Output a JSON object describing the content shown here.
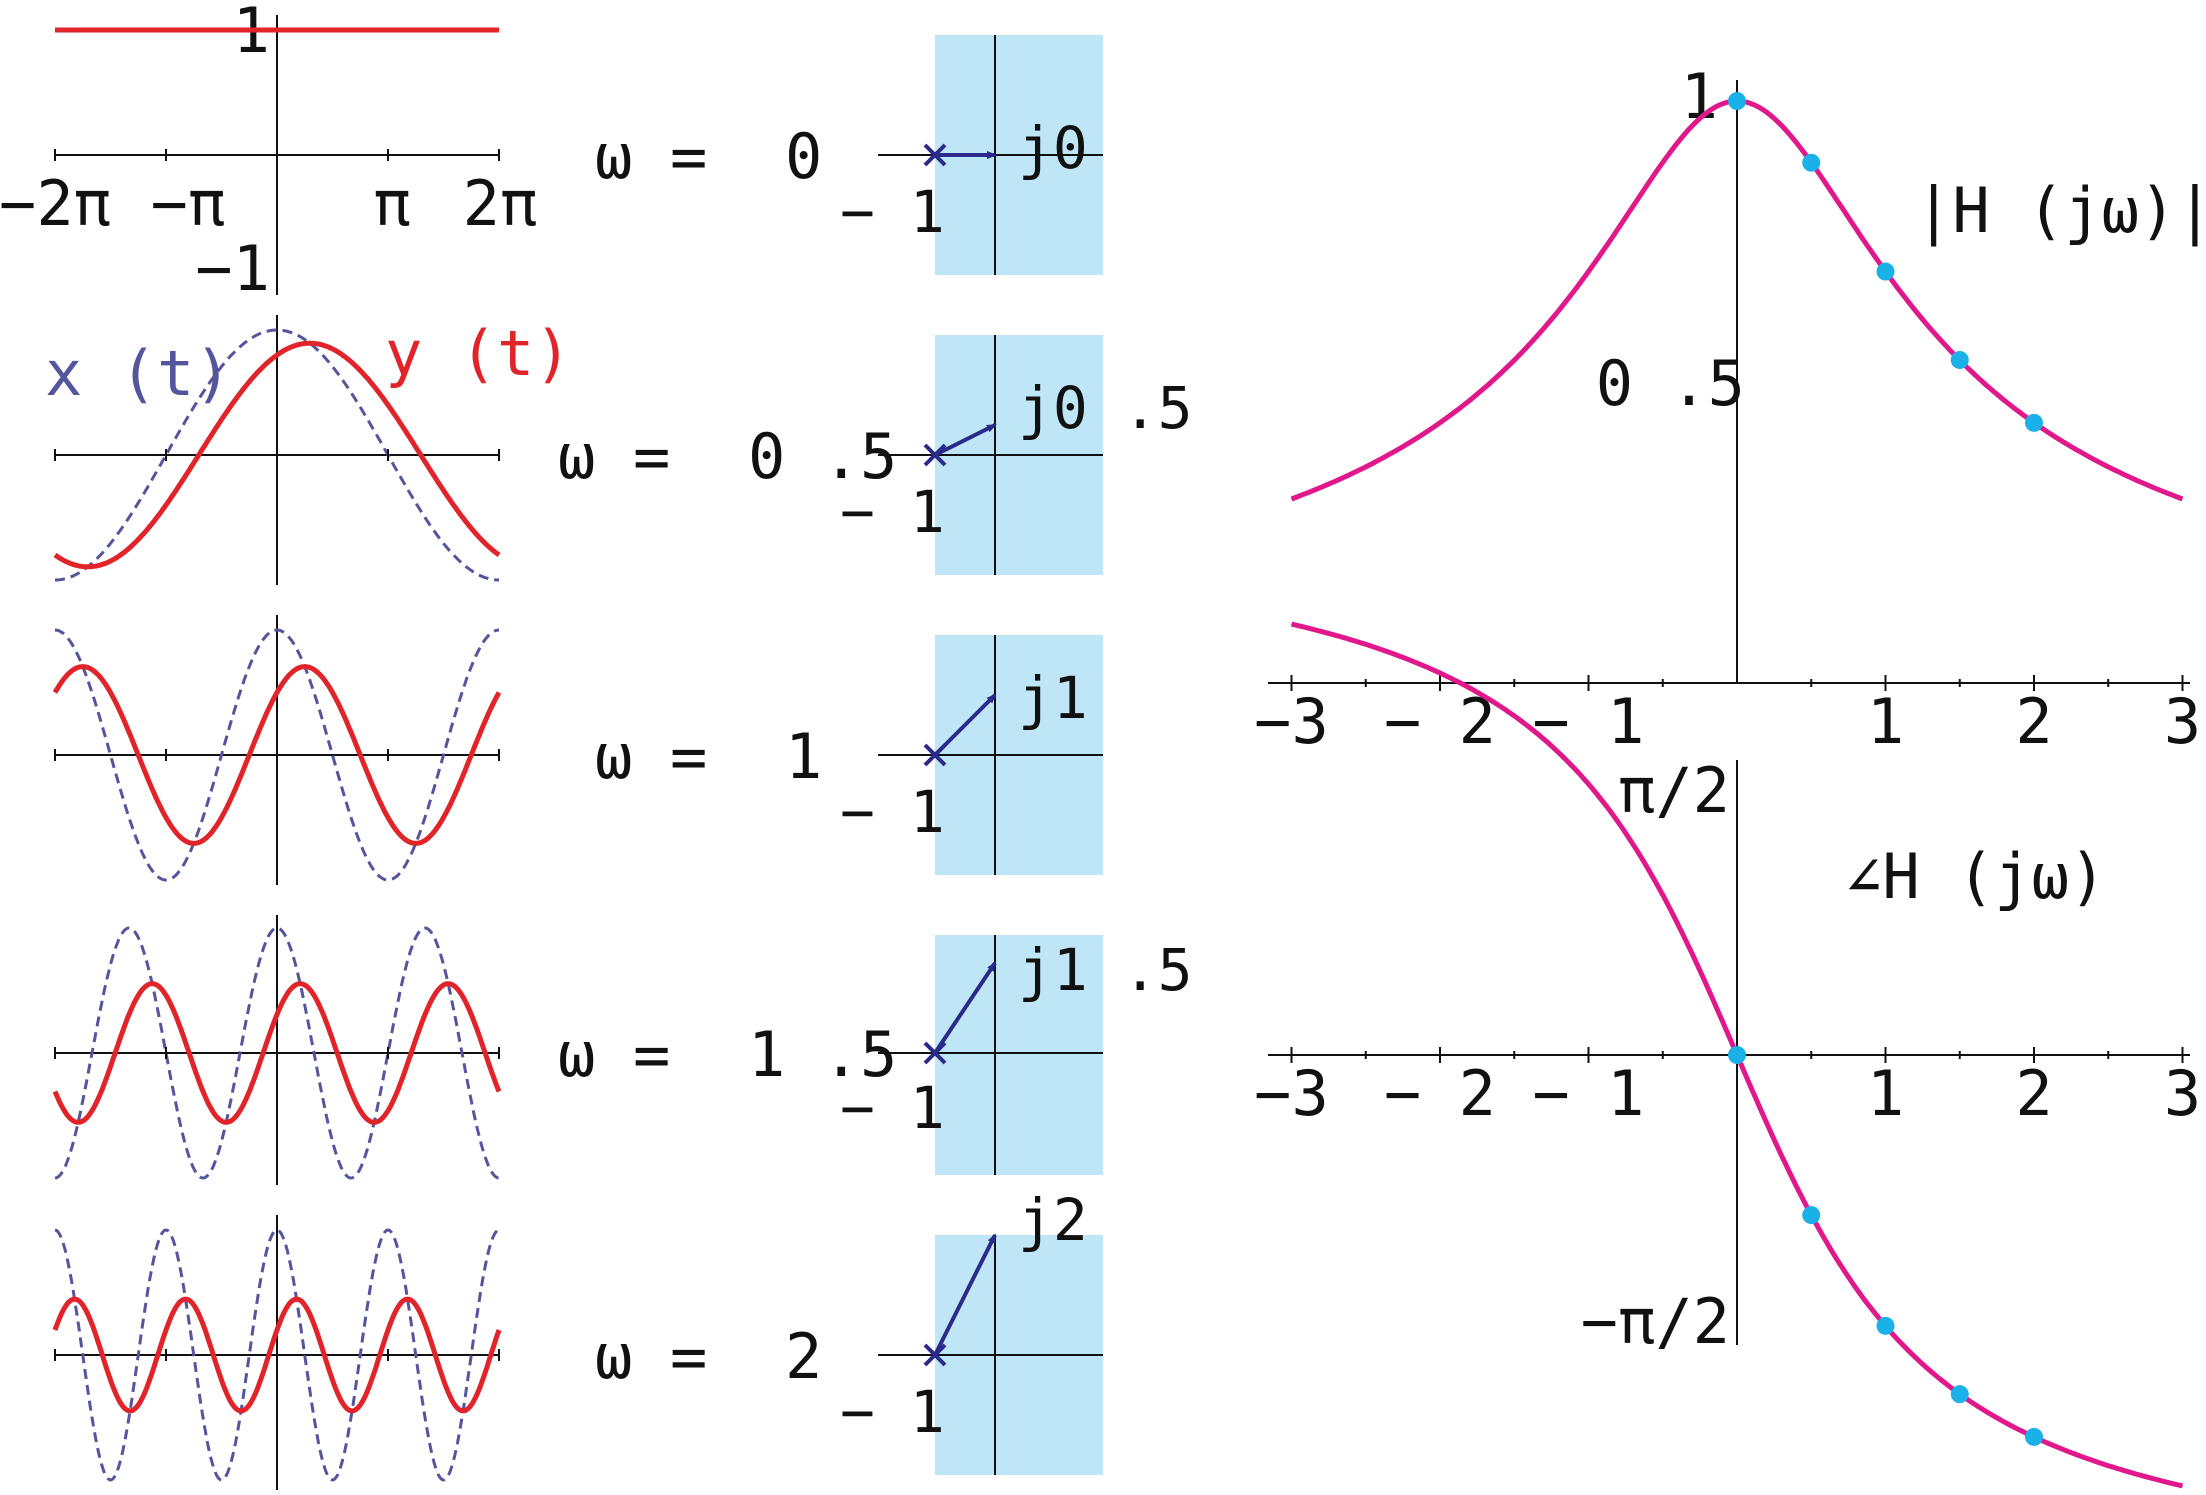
{
  "time_panels": {
    "x_ticks": [
      "−2π",
      "−π",
      "π",
      "2π"
    ],
    "y_ticks": [
      "1",
      "−1"
    ],
    "legend": {
      "x": "x (t)",
      "y": "y (t)"
    },
    "colors": {
      "x": "#55559e",
      "y": "#e0242a",
      "axis": "#111111"
    }
  },
  "phasor_panels": {
    "omega_symbol": "ω",
    "equals": "=",
    "minus_one_label": "− 1",
    "background_color": "#bfe6f7",
    "arrow_color": "#2a2a8c",
    "rows": [
      {
        "omega": "0",
        "tip": "j0"
      },
      {
        "omega": "0 .5",
        "tip": "j0 .5"
      },
      {
        "omega": "1",
        "tip": "j1"
      },
      {
        "omega": "1 .5",
        "tip": "j1 .5"
      },
      {
        "omega": "2",
        "tip": "j2"
      }
    ]
  },
  "chart_data": [
    {
      "type": "line",
      "title": "",
      "panel": "magnitude",
      "curve_label": "|H (jω)|",
      "xlabel": "",
      "ylabel": "",
      "xlim": [
        -3,
        3
      ],
      "ylim": [
        0,
        1.05
      ],
      "x_tick_labels": [
        "−3",
        "− 2",
        "− 1",
        "1",
        "2",
        "3"
      ],
      "y_tick_labels": [
        "0 .5",
        "1"
      ],
      "series": [
        {
          "function": "1/sqrt(1+w^2)",
          "x": [
            -3,
            -2,
            -1,
            0,
            0.5,
            1,
            1.5,
            2,
            3
          ],
          "values": [
            0.316,
            0.447,
            0.707,
            1,
            0.894,
            0.707,
            0.555,
            0.447,
            0.316
          ]
        }
      ],
      "highlighted_points": [
        {
          "x": 0,
          "y": 1
        },
        {
          "x": 0.5,
          "y": 0.894
        },
        {
          "x": 1,
          "y": 0.707
        },
        {
          "x": 1.5,
          "y": 0.555
        },
        {
          "x": 2,
          "y": 0.447
        }
      ],
      "colors": {
        "curve": "#e0188c",
        "points": "#1ab0e8"
      }
    },
    {
      "type": "line",
      "title": "",
      "panel": "phase",
      "curve_label": "∠H (jω)",
      "xlabel": "",
      "ylabel": "",
      "xlim": [
        -3,
        3
      ],
      "ylim": [
        -1.5708,
        1.5708
      ],
      "x_tick_labels": [
        "−3",
        "− 2",
        "− 1",
        "1",
        "2",
        "3"
      ],
      "y_tick_labels": [
        "π/2",
        "−π/2"
      ],
      "series": [
        {
          "function": "-atan(w)",
          "x": [
            -3,
            -2,
            -1,
            0,
            0.5,
            1,
            1.5,
            2,
            3
          ],
          "values": [
            1.249,
            1.107,
            0.785,
            0,
            -0.464,
            -0.785,
            -0.983,
            -1.107,
            -1.249
          ]
        }
      ],
      "highlighted_points": [
        {
          "x": 0,
          "y": 0
        },
        {
          "x": 0.5,
          "y": -0.464
        },
        {
          "x": 1,
          "y": -0.785
        },
        {
          "x": 1.5,
          "y": -0.983
        },
        {
          "x": 2,
          "y": -1.107
        }
      ],
      "colors": {
        "curve": "#e0188c",
        "points": "#1ab0e8"
      }
    }
  ]
}
